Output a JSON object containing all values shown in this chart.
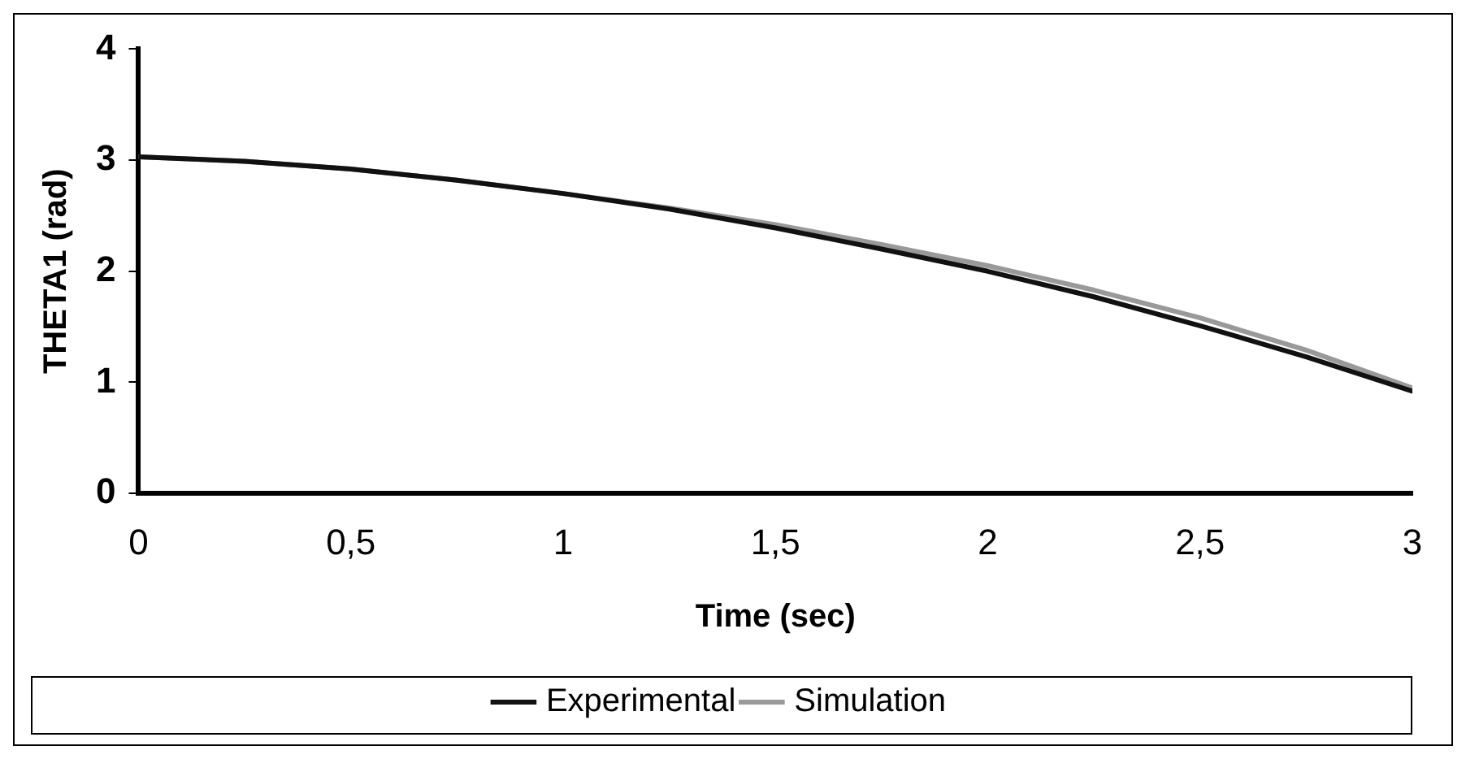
{
  "chart_data": {
    "type": "line",
    "xlabel": "Time (sec)",
    "ylabel": "THETA1 (rad)",
    "x": [
      0,
      0.25,
      0.5,
      0.75,
      1,
      1.25,
      1.5,
      1.75,
      2,
      2.25,
      2.5,
      2.75,
      3
    ],
    "series": [
      {
        "name": "Experimental",
        "color": "#111111",
        "values": [
          3.03,
          2.99,
          2.92,
          2.82,
          2.7,
          2.56,
          2.39,
          2.2,
          2.0,
          1.77,
          1.51,
          1.23,
          0.92
        ]
      },
      {
        "name": "Simulation",
        "color": "#999999",
        "values": [
          3.03,
          2.99,
          2.92,
          2.82,
          2.7,
          2.57,
          2.42,
          2.24,
          2.05,
          1.83,
          1.58,
          1.29,
          0.95
        ]
      }
    ],
    "xlim": [
      0,
      3
    ],
    "xticks": [
      {
        "value": 0,
        "label": "0"
      },
      {
        "value": 0.5,
        "label": "0,5"
      },
      {
        "value": 1,
        "label": "1"
      },
      {
        "value": 1.5,
        "label": "1,5"
      },
      {
        "value": 2,
        "label": "2"
      },
      {
        "value": 2.5,
        "label": "2,5"
      },
      {
        "value": 3,
        "label": "3"
      }
    ],
    "ylim": [
      0,
      4
    ],
    "yticks": [
      0,
      1,
      2,
      3,
      4
    ],
    "grid": false,
    "legend": "bottom",
    "marker": "none",
    "line_style": "solid"
  }
}
